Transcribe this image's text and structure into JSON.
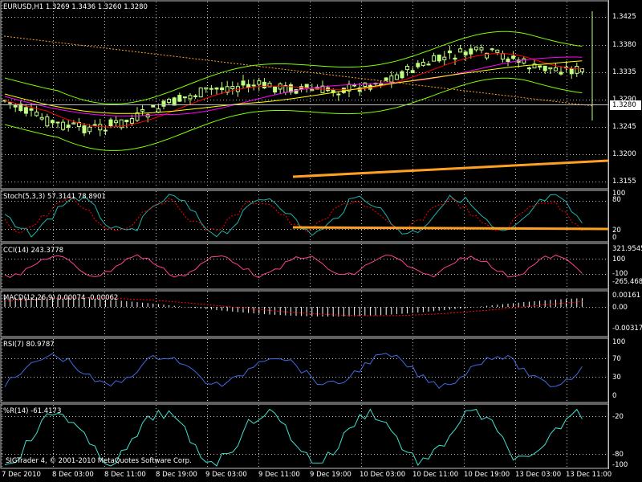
{
  "main": {
    "header": "EURUSD,H1  1.3269 1.3436 1.3260 1.3280",
    "current_price": "1.3280",
    "price_ticks": [
      "1.3425",
      "1.3380",
      "1.3335",
      "1.3290",
      "1.3245",
      "1.3200",
      "1.3155"
    ]
  },
  "stoch": {
    "header": "Stoch(5,3,3) 57.3141 78.8901",
    "ticks": [
      "100",
      "80",
      "20",
      "0"
    ]
  },
  "cci": {
    "header": "CCI(14) 243.3778",
    "ticks": [
      "321.9545",
      "100",
      "-100",
      "-265.468"
    ]
  },
  "macd": {
    "header": "MACD(12,26,9) 0.00074 -0.00062",
    "ticks": [
      "0.00161",
      "0.00",
      "-0.00317"
    ]
  },
  "rsi": {
    "header": "RSI(7) 80.9787",
    "ticks": [
      "100",
      "70",
      "30",
      "0"
    ]
  },
  "wpr": {
    "header": "%R(14) -61.4173",
    "ticks": [
      "-20",
      "-80",
      "-100"
    ]
  },
  "time_axis": [
    "7 Dec 2010",
    "8 Dec 03:00",
    "8 Dec 11:00",
    "8 Dec 19:00",
    "9 Dec 03:00",
    "9 Dec 11:00",
    "9 Dec 19:00",
    "10 Dec 03:00",
    "10 Dec 11:00",
    "10 Dec 19:00",
    "13 Dec 03:00",
    "13 Dec 11:00"
  ],
  "copyright": "SIGTrader 4, © 2001-2010 MetaQuotes Software Corp.",
  "colors": {
    "background": "#000000",
    "grid": "#c0c0c0",
    "candle_up": "#c0ff80",
    "candle_down": "#90ee90",
    "bollinger": "#80ff00",
    "ma_red": "#ff0000",
    "ma_magenta": "#ff00ff",
    "ma_yellow": "#ffff00",
    "trendline": "#ffa020",
    "stoch_main": "#20b2aa",
    "stoch_signal": "#ff0000",
    "cci": "#ff4090",
    "macd": "#ffffff",
    "macd_signal": "#ff0000",
    "rsi": "#4169e1",
    "wpr": "#40e0d0"
  }
}
